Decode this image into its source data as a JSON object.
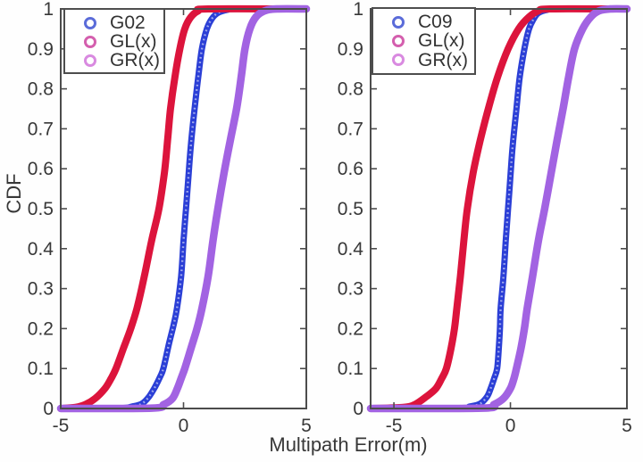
{
  "figure": {
    "xlabel": "Multipath Error(m)",
    "ylabel": "CDF",
    "background": "#fefefe",
    "axis_color": "#4c4c4c",
    "text_color": "#383838"
  },
  "chart_data": [
    {
      "type": "line",
      "subtype": "empirical-cdf",
      "panel": "left",
      "title": "",
      "xlabel": "Multipath Error(m)",
      "ylabel": "CDF",
      "xlim": [
        -5,
        5
      ],
      "ylim": [
        0,
        1
      ],
      "grid": false,
      "xticks": {
        "values": [
          -5,
          0,
          5
        ],
        "labels": [
          "-5",
          "0",
          "5"
        ]
      },
      "yticks": {
        "values": [
          0,
          0.1,
          0.2,
          0.3,
          0.4,
          0.5,
          0.6,
          0.7,
          0.8,
          0.9,
          1
        ],
        "labels": [
          "0",
          "0.1",
          "0.2",
          "0.3",
          "0.4",
          "0.5",
          "0.6",
          "0.7",
          "0.8",
          "0.9",
          "1"
        ]
      },
      "legend": {
        "position": "top-left",
        "entries": [
          {
            "label": "G02",
            "marker_color": "#5b6cd9"
          },
          {
            "label": "GL(x)",
            "marker_color": "#d45fae"
          },
          {
            "label": "GR(x)",
            "marker_color": "#d98ae0"
          }
        ]
      },
      "series": [
        {
          "name": "G02",
          "color": "#2b3fd6",
          "points": [
            [
              -5,
              0
            ],
            [
              -2.6,
              0.001
            ],
            [
              -2.1,
              0.005
            ],
            [
              -1.7,
              0.012
            ],
            [
              -1.4,
              0.03
            ],
            [
              -1.15,
              0.055
            ],
            [
              -0.95,
              0.08
            ],
            [
              -0.82,
              0.1
            ],
            [
              -0.6,
              0.16
            ],
            [
              -0.4,
              0.21
            ],
            [
              -0.27,
              0.25
            ],
            [
              -0.1,
              0.33
            ],
            [
              0,
              0.42
            ],
            [
              0.1,
              0.5
            ],
            [
              0.2,
              0.58
            ],
            [
              0.3,
              0.66
            ],
            [
              0.45,
              0.75
            ],
            [
              0.6,
              0.83
            ],
            [
              0.75,
              0.9
            ],
            [
              0.95,
              0.95
            ],
            [
              1.15,
              0.975
            ],
            [
              1.4,
              0.99
            ],
            [
              1.8,
              0.998
            ],
            [
              2.2,
              1
            ],
            [
              5,
              1
            ]
          ]
        },
        {
          "name": "GL(x)",
          "color": "#dc143c",
          "points": [
            [
              -5,
              0
            ],
            [
              -4.4,
              0.003
            ],
            [
              -4,
              0.01
            ],
            [
              -3.6,
              0.025
            ],
            [
              -3.2,
              0.05
            ],
            [
              -2.95,
              0.075
            ],
            [
              -2.75,
              0.1
            ],
            [
              -2.45,
              0.15
            ],
            [
              -2.15,
              0.2
            ],
            [
              -1.9,
              0.25
            ],
            [
              -1.6,
              0.33
            ],
            [
              -1.3,
              0.42
            ],
            [
              -1,
              0.5
            ],
            [
              -0.78,
              0.59
            ],
            [
              -0.65,
              0.67
            ],
            [
              -0.53,
              0.75
            ],
            [
              -0.35,
              0.83
            ],
            [
              -0.15,
              0.9
            ],
            [
              0.05,
              0.95
            ],
            [
              0.3,
              0.98
            ],
            [
              0.6,
              0.995
            ],
            [
              1,
              1
            ],
            [
              5,
              1
            ]
          ]
        },
        {
          "name": "GR(x)",
          "color": "#a263e2",
          "points": [
            [
              -5,
              0
            ],
            [
              -1.3,
              0.001
            ],
            [
              -0.8,
              0.01
            ],
            [
              -0.45,
              0.025
            ],
            [
              -0.25,
              0.05
            ],
            [
              -0.1,
              0.075
            ],
            [
              0.05,
              0.1
            ],
            [
              0.3,
              0.15
            ],
            [
              0.55,
              0.2
            ],
            [
              0.75,
              0.25
            ],
            [
              1,
              0.33
            ],
            [
              1.2,
              0.42
            ],
            [
              1.4,
              0.5
            ],
            [
              1.65,
              0.59
            ],
            [
              1.9,
              0.67
            ],
            [
              2.16,
              0.75
            ],
            [
              2.35,
              0.83
            ],
            [
              2.5,
              0.9
            ],
            [
              2.7,
              0.95
            ],
            [
              2.95,
              0.98
            ],
            [
              3.3,
              0.995
            ],
            [
              3.8,
              1
            ],
            [
              5,
              1
            ]
          ]
        }
      ]
    },
    {
      "type": "line",
      "subtype": "empirical-cdf",
      "panel": "right",
      "title": "",
      "xlabel": "Multipath Error(m)",
      "ylabel": "",
      "xlim": [
        -6,
        5
      ],
      "ylim": [
        0,
        1
      ],
      "grid": false,
      "xticks": {
        "values": [
          -5,
          0,
          5
        ],
        "labels": [
          "-5",
          "0",
          "5"
        ]
      },
      "yticks": {
        "values": [
          0,
          0.1,
          0.2,
          0.3,
          0.4,
          0.5,
          0.6,
          0.7,
          0.8,
          0.9,
          1
        ],
        "labels": [
          "0",
          "0.1",
          "0.2",
          "0.3",
          "0.4",
          "0.5",
          "0.6",
          "0.7",
          "0.8",
          "0.9",
          "1"
        ]
      },
      "legend": {
        "position": "top-left",
        "entries": [
          {
            "label": "C09",
            "marker_color": "#5b6cd9"
          },
          {
            "label": "GL(x)",
            "marker_color": "#d45fae"
          },
          {
            "label": "GR(x)",
            "marker_color": "#d98ae0"
          }
        ]
      },
      "series": [
        {
          "name": "C09",
          "color": "#2b3fd6",
          "points": [
            [
              -6,
              0
            ],
            [
              -2.2,
              0.001
            ],
            [
              -1.75,
              0.005
            ],
            [
              -1.3,
              0.012
            ],
            [
              -1,
              0.03
            ],
            [
              -0.85,
              0.05
            ],
            [
              -0.7,
              0.075
            ],
            [
              -0.57,
              0.1
            ],
            [
              -0.5,
              0.15
            ],
            [
              -0.45,
              0.2
            ],
            [
              -0.42,
              0.25
            ],
            [
              -0.3,
              0.33
            ],
            [
              -0.2,
              0.42
            ],
            [
              -0.1,
              0.5
            ],
            [
              0,
              0.58
            ],
            [
              0.1,
              0.66
            ],
            [
              0.26,
              0.75
            ],
            [
              0.4,
              0.83
            ],
            [
              0.6,
              0.9
            ],
            [
              0.8,
              0.95
            ],
            [
              1,
              0.975
            ],
            [
              1.2,
              0.99
            ],
            [
              1.6,
              0.998
            ],
            [
              2,
              1
            ],
            [
              5,
              1
            ]
          ]
        },
        {
          "name": "GL(x)",
          "color": "#dc143c",
          "points": [
            [
              -6,
              0
            ],
            [
              -4.6,
              0.003
            ],
            [
              -4.1,
              0.01
            ],
            [
              -3.6,
              0.03
            ],
            [
              -3.2,
              0.05
            ],
            [
              -2.95,
              0.075
            ],
            [
              -2.75,
              0.1
            ],
            [
              -2.55,
              0.15
            ],
            [
              -2.4,
              0.2
            ],
            [
              -2.3,
              0.25
            ],
            [
              -2.15,
              0.33
            ],
            [
              -2,
              0.42
            ],
            [
              -1.85,
              0.5
            ],
            [
              -1.6,
              0.59
            ],
            [
              -1.3,
              0.67
            ],
            [
              -0.95,
              0.75
            ],
            [
              -0.55,
              0.83
            ],
            [
              -0.1,
              0.9
            ],
            [
              0.35,
              0.95
            ],
            [
              0.8,
              0.98
            ],
            [
              1.2,
              0.995
            ],
            [
              1.7,
              1
            ],
            [
              5,
              1
            ]
          ]
        },
        {
          "name": "GR(x)",
          "color": "#a263e2",
          "points": [
            [
              -6,
              0
            ],
            [
              -1.2,
              0.001
            ],
            [
              -0.7,
              0.01
            ],
            [
              -0.3,
              0.025
            ],
            [
              0,
              0.05
            ],
            [
              0.15,
              0.075
            ],
            [
              0.26,
              0.1
            ],
            [
              0.45,
              0.15
            ],
            [
              0.6,
              0.2
            ],
            [
              0.72,
              0.25
            ],
            [
              0.95,
              0.33
            ],
            [
              1.2,
              0.42
            ],
            [
              1.47,
              0.5
            ],
            [
              1.75,
              0.59
            ],
            [
              2,
              0.67
            ],
            [
              2.26,
              0.75
            ],
            [
              2.5,
              0.83
            ],
            [
              2.75,
              0.9
            ],
            [
              3.1,
              0.95
            ],
            [
              3.45,
              0.98
            ],
            [
              3.8,
              0.995
            ],
            [
              4.3,
              1
            ],
            [
              5,
              1
            ]
          ]
        }
      ]
    }
  ]
}
